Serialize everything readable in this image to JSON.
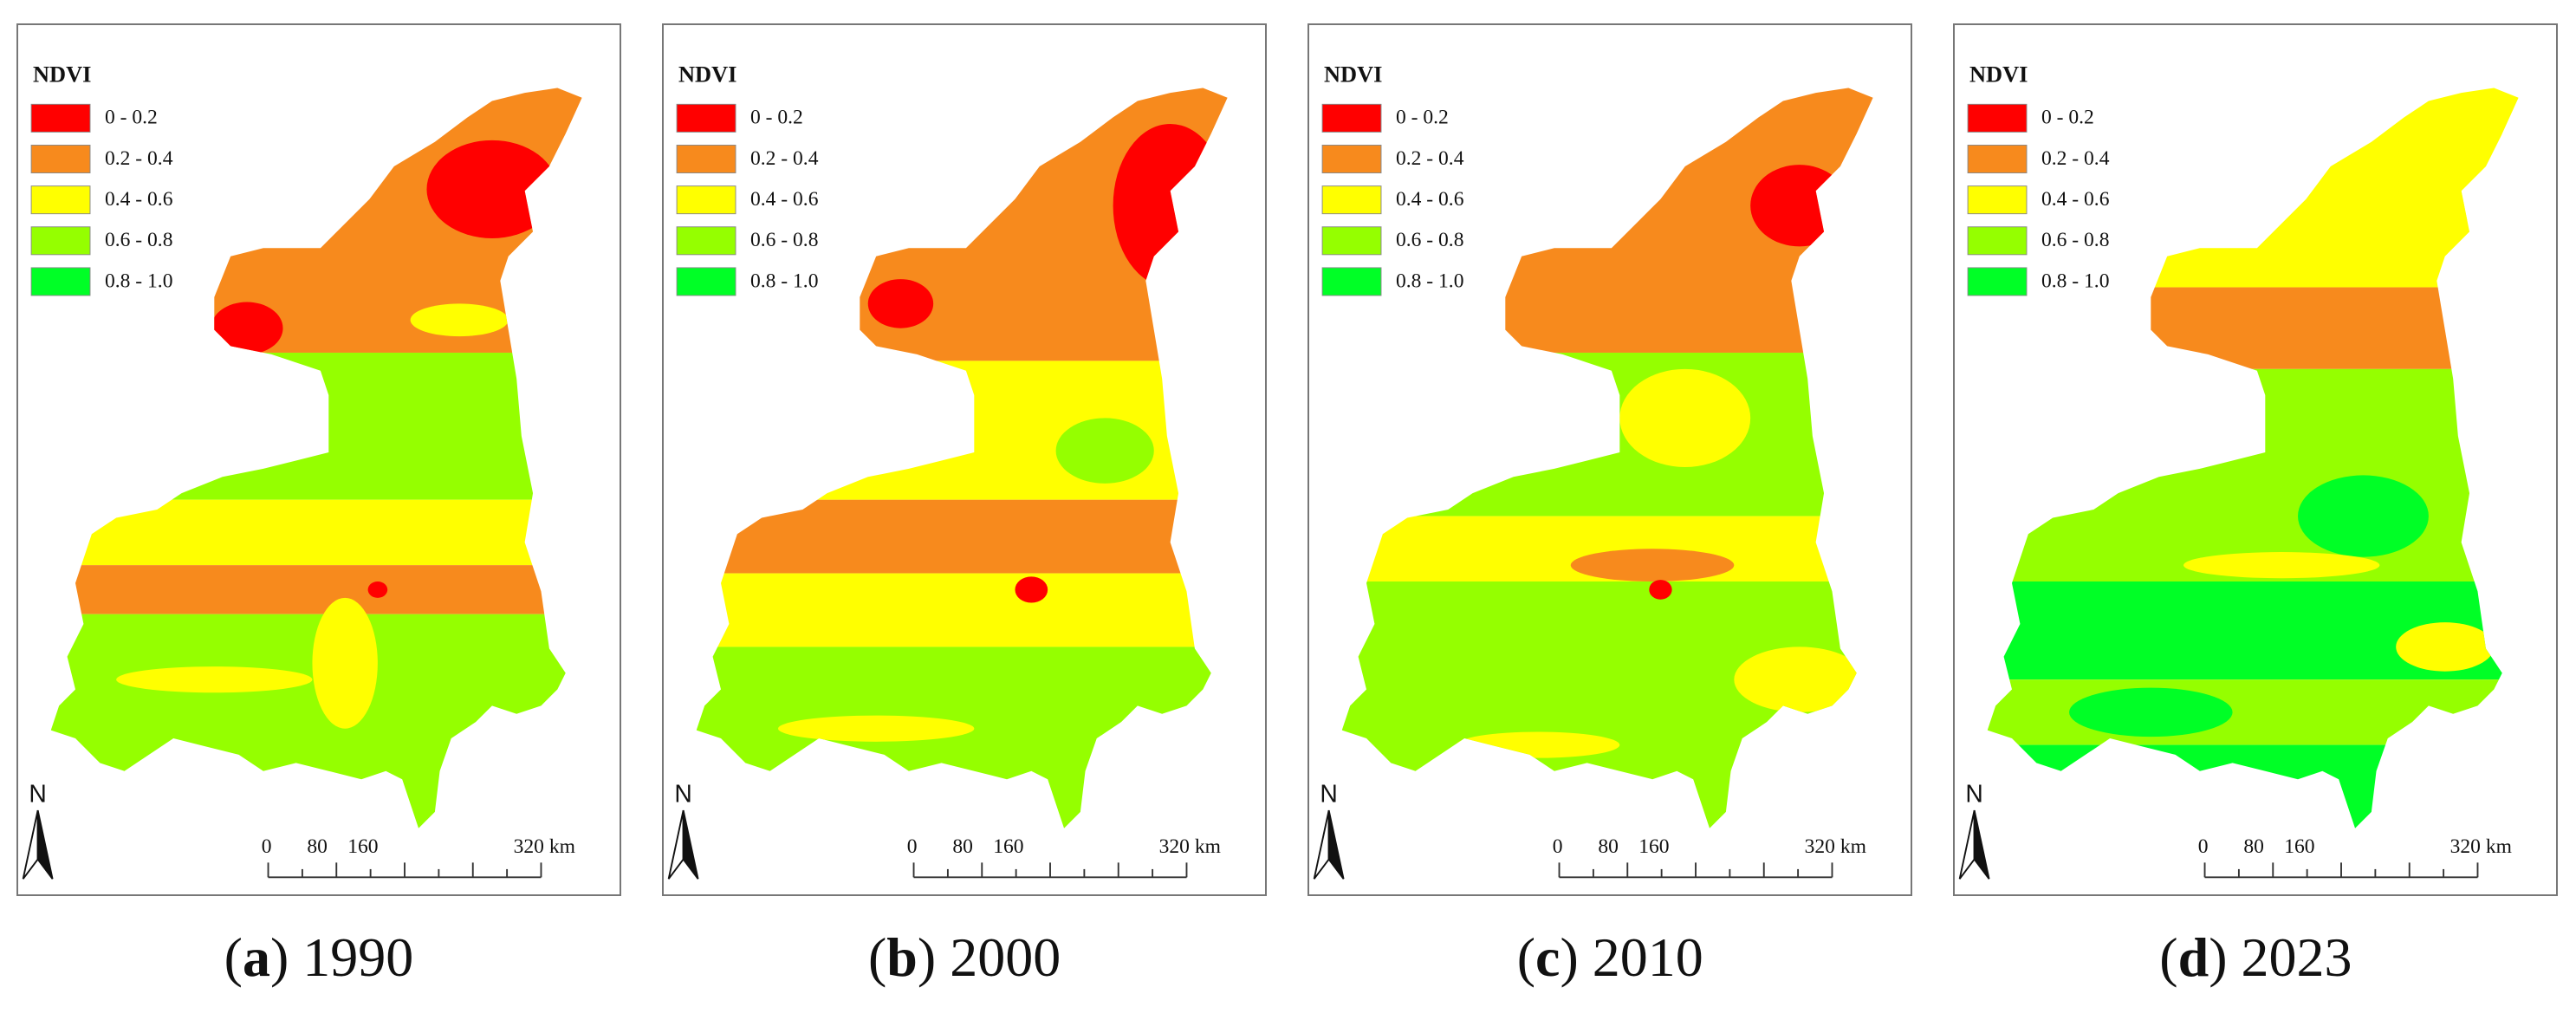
{
  "legend": {
    "title": "NDVI",
    "items": [
      {
        "label": "0 - 0.2",
        "color": "#ff0000"
      },
      {
        "label": "0.2 - 0.4",
        "color": "#f78a1d"
      },
      {
        "label": "0.4 - 0.6",
        "color": "#ffff00"
      },
      {
        "label": "0.6 - 0.8",
        "color": "#95ff00"
      },
      {
        "label": "0.8 - 1.0",
        "color": "#00ff26"
      }
    ]
  },
  "north": "N",
  "scale_bar": {
    "labels": [
      "0",
      "80",
      "160",
      "320 km"
    ]
  },
  "panels": [
    {
      "caption": [
        "(",
        "a",
        ") 1990"
      ]
    },
    {
      "caption": [
        "(",
        "b",
        ") 2000"
      ]
    },
    {
      "caption": [
        "(",
        "c",
        ") 2010"
      ]
    },
    {
      "caption": [
        "(",
        "d",
        ") 2023"
      ]
    }
  ]
}
